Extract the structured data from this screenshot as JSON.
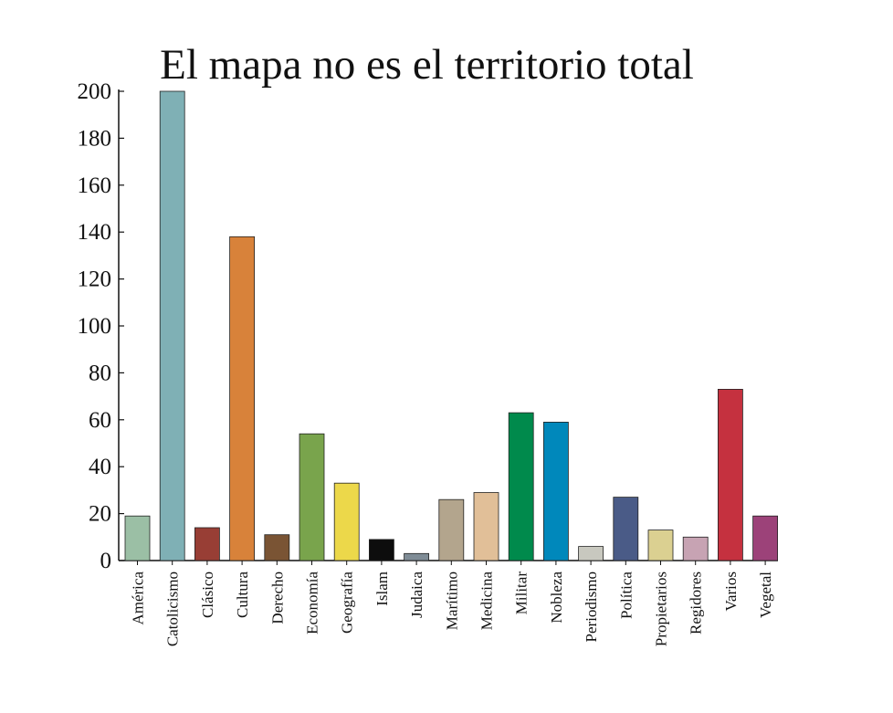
{
  "chart_data": {
    "type": "bar",
    "title": "El mapa no es el territorio total",
    "xlabel": "",
    "ylabel": "",
    "ylim": [
      0,
      200
    ],
    "yticks": [
      0,
      20,
      40,
      60,
      80,
      100,
      120,
      140,
      160,
      180,
      200
    ],
    "categories": [
      "América",
      "Catolicismo",
      "Clásico",
      "Cultura",
      "Derecho",
      "Economía",
      "Geografía",
      "Islam",
      "Judaica",
      "Marítimo",
      "Medicina",
      "Militar",
      "Nobleza",
      "Periodismo",
      "Política",
      "Propietarios",
      "Regidores",
      "Varios",
      "Vegetal"
    ],
    "values": [
      19,
      200,
      14,
      138,
      11,
      54,
      33,
      9,
      3,
      26,
      29,
      63,
      59,
      6,
      27,
      13,
      10,
      73,
      19
    ],
    "colors": [
      "#9bbfa5",
      "#7fb0b5",
      "#983e35",
      "#d8823a",
      "#7a5434",
      "#79a44c",
      "#ecd84a",
      "#0d0d0d",
      "#7f8c96",
      "#b3a58d",
      "#e1bf98",
      "#008a4c",
      "#0088bb",
      "#c8c8bf",
      "#4a5b87",
      "#dbd091",
      "#c7a3b3",
      "#c5313f",
      "#9c4279"
    ]
  }
}
